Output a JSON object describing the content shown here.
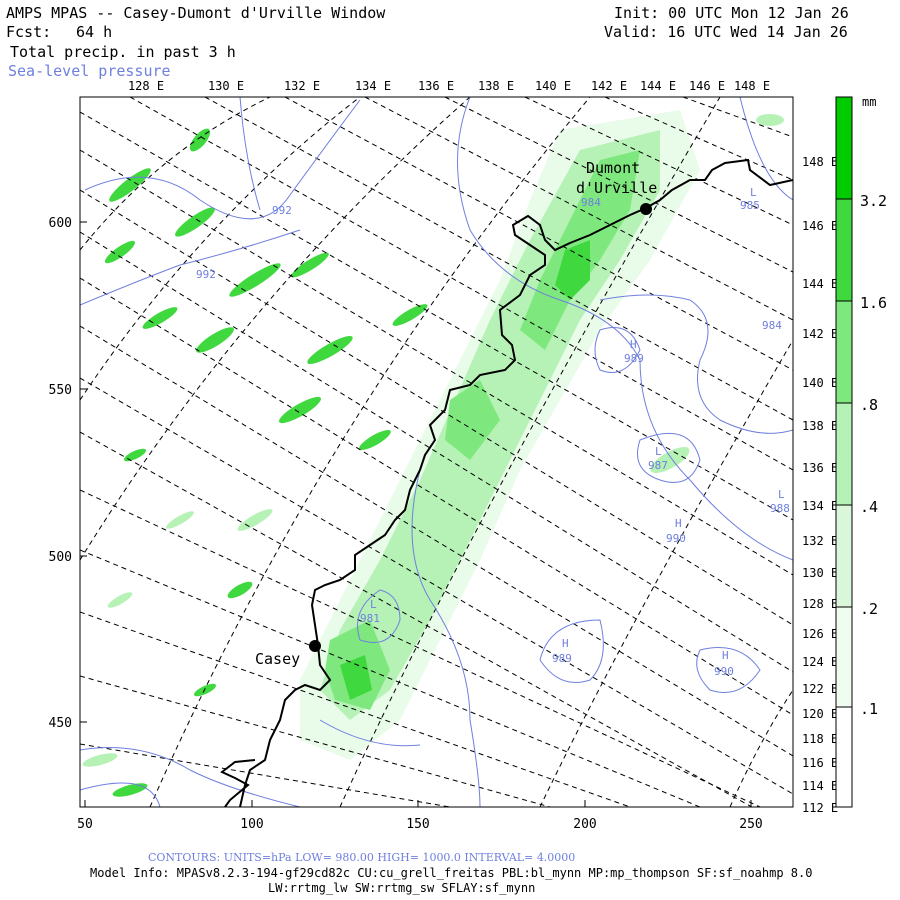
{
  "header": {
    "title": "AMPS MPAS -- Casey-Dumont d'Urville Window",
    "fcst_label": "Fcst:",
    "fcst_value": "64 h",
    "init": "Init: 00 UTC Mon 12 Jan 26",
    "valid": "Valid: 16 UTC Wed 14 Jan 26",
    "field": "Total precip. in past 3 h",
    "overlay": "Sea-level pressure"
  },
  "colors": {
    "overlay": "#6f7fdf",
    "precip_1": "#e9fbe9",
    "precip_2": "#b6f2b6",
    "precip_3": "#7ee87e",
    "precip_4": "#3fd93f",
    "precip_5": "#00cc00",
    "coast": "#000000"
  },
  "map": {
    "top_lon_labels": [
      "128 E",
      "130 E",
      "132 E",
      "134 E",
      "136 E",
      "138 E",
      "140 E",
      "142 E",
      "144 E",
      "146 E",
      "148 E"
    ],
    "right_lon_labels": [
      "148 E",
      "146 E",
      "144 E",
      "142 E",
      "140 E",
      "138 E",
      "136 E",
      "134 E",
      "132 E",
      "130 E",
      "128 E",
      "126 E",
      "124 E",
      "122 E",
      "120 E",
      "118 E",
      "116 E",
      "114 E",
      "112 E"
    ],
    "x_ticks": [
      "50",
      "100",
      "150",
      "200",
      "250"
    ],
    "y_ticks": [
      "600",
      "550",
      "500",
      "450"
    ],
    "stations": [
      {
        "name_line1": "Dumont",
        "name_line2": "d'Urville"
      },
      {
        "name_line1": "Casey",
        "name_line2": ""
      }
    ],
    "pressure_labels": [
      {
        "text": "992"
      },
      {
        "text": "992"
      },
      {
        "text": "984"
      },
      {
        "text": "985"
      },
      {
        "text": "984"
      },
      {
        "text": "989"
      },
      {
        "text": "987"
      },
      {
        "text": "988"
      },
      {
        "text": "990"
      },
      {
        "text": "981"
      },
      {
        "text": "989"
      },
      {
        "text": "990"
      }
    ],
    "center_markers": [
      {
        "text": "H"
      },
      {
        "text": "L"
      },
      {
        "text": "H"
      },
      {
        "text": "L"
      },
      {
        "text": "H"
      },
      {
        "text": "H"
      },
      {
        "text": "L"
      },
      {
        "text": "L"
      }
    ]
  },
  "colorbar": {
    "unit": "mm",
    "levels": [
      "3.2",
      "1.6",
      ".8",
      ".4",
      ".2",
      ".1"
    ]
  },
  "footer": {
    "contours": "CONTOURS:  UNITS=hPa  LOW=  980.00      HIGH=  1000.0      INTERVAL=   4.0000",
    "model_info": "Model Info: MPASv8.2.3-194-gf29cd82c CU:cu_grell_freitas PBL:bl_mynn MP:mp_thompson SF:sf_noahmp 8.0",
    "model_info_2": "LW:rrtmg_lw SW:rrtmg_sw SFLAY:sf_mynn"
  }
}
